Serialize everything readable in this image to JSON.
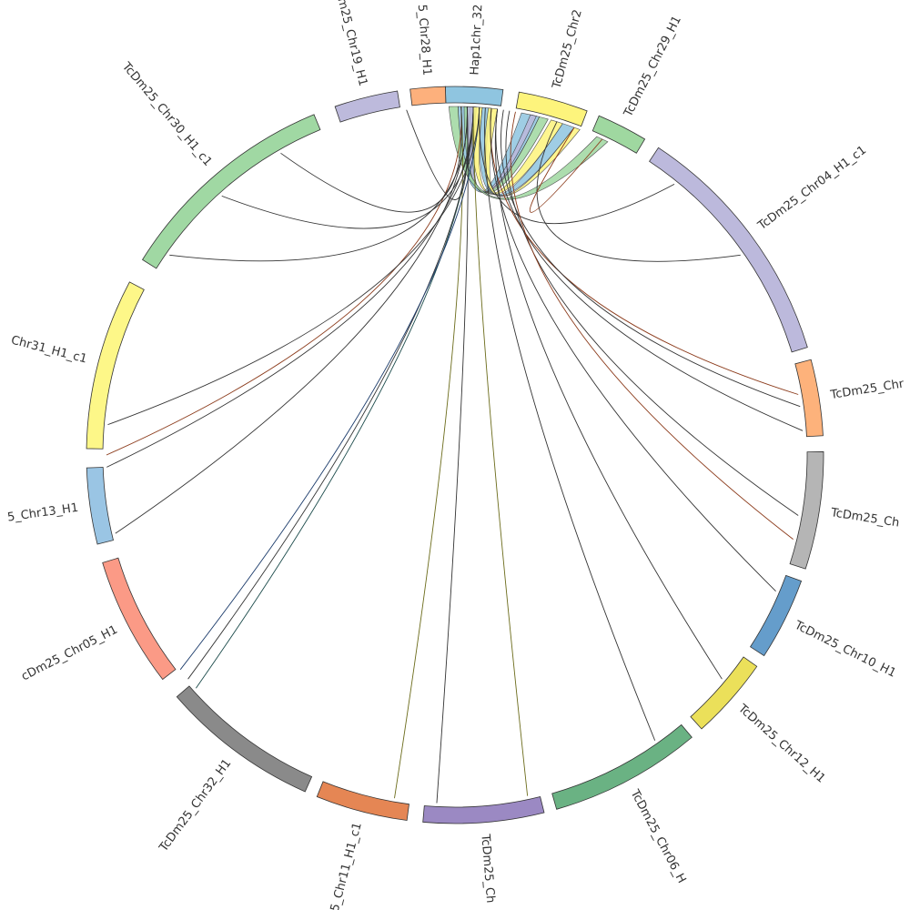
{
  "diagram": {
    "type": "circos",
    "segments": [
      {
        "id": "hap1chr32",
        "label": "Hap1chr_32",
        "color": "#8fc5e0"
      },
      {
        "id": "chr2x",
        "label": "TcDm25_Chr2",
        "color": "#fdf47c"
      },
      {
        "id": "chr29",
        "label": "TcDm25_Chr29_H1",
        "color": "#9fd8a0"
      },
      {
        "id": "chr04",
        "label": "TcDm25_Chr04_H1_c1",
        "color": "#bcb9dc"
      },
      {
        "id": "chr_a",
        "label": "TcDm25_Chr",
        "color": "#fdb27b"
      },
      {
        "id": "chr_b",
        "label": "TcDm25_Ch",
        "color": "#b5b5b5"
      },
      {
        "id": "chr10",
        "label": "TcDm25_Chr10_H1",
        "color": "#659dcb"
      },
      {
        "id": "chr12",
        "label": "TcDm25_Chr12_H1",
        "color": "#ebe05a"
      },
      {
        "id": "chr06",
        "label": "TcDm25_Chr06_H",
        "color": "#6ab283"
      },
      {
        "id": "chr_c",
        "label": "TcDm25_Ch",
        "color": "#9b89c3"
      },
      {
        "id": "chr11",
        "label": "5_Chr11_H1_c1",
        "color": "#e58654"
      },
      {
        "id": "chr32",
        "label": "TcDm25_Chr32_H1",
        "color": "#8a8a8a"
      },
      {
        "id": "chr05",
        "label": "cDm25_Chr05_H1",
        "color": "#fb9a86"
      },
      {
        "id": "chr13",
        "label": "5_Chr13_H1",
        "color": "#9ac5e4"
      },
      {
        "id": "chr31",
        "label": "Chr31_H1_c1",
        "color": "#fdf788"
      },
      {
        "id": "chr30",
        "label": "TcDm25_Chr30_H1_c1",
        "color": "#a0d8a3"
      },
      {
        "id": "chr19",
        "label": "m25_Chr19_H1",
        "color": "#bdbadc"
      },
      {
        "id": "chr28",
        "label": "5_Chr28_H1",
        "color": "#fdb07c"
      }
    ]
  }
}
